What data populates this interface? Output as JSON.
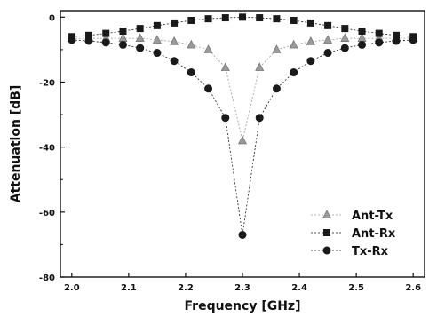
{
  "chart_data": {
    "type": "line",
    "title": "",
    "xlabel": "Frequency [GHz]",
    "ylabel": "Attenuation [dB]",
    "xlim": [
      1.98,
      2.62
    ],
    "ylim": [
      -80,
      2
    ],
    "x_ticks": [
      "2.0",
      "2.1",
      "2.2",
      "2.3",
      "2.4",
      "2.5",
      "2.6"
    ],
    "y_ticks": [
      "0",
      "-20",
      "-40",
      "-60",
      "-80"
    ],
    "grid": false,
    "legend_position": "bottom-right",
    "x": [
      2.0,
      2.03,
      2.06,
      2.09,
      2.12,
      2.15,
      2.18,
      2.21,
      2.24,
      2.27,
      2.3,
      2.33,
      2.36,
      2.39,
      2.42,
      2.45,
      2.48,
      2.51,
      2.54,
      2.57,
      2.6
    ],
    "series": [
      {
        "name": "Ant-Tx",
        "marker": "triangle",
        "color": "#9a9a9a",
        "values": [
          -6.5,
          -6.5,
          -6.5,
          -6.5,
          -6.5,
          -7,
          -7.5,
          -8.5,
          -10,
          -15.5,
          -38,
          -15.5,
          -10,
          -8.5,
          -7.5,
          -7,
          -6.5,
          -6.5,
          -6.5,
          -6.5,
          -6.5
        ]
      },
      {
        "name": "Ant-Rx",
        "marker": "square",
        "color": "#1a1a1a",
        "values": [
          -6,
          -5.6,
          -5,
          -4.3,
          -3.5,
          -2.6,
          -1.8,
          -1,
          -0.5,
          -0.2,
          0,
          -0.2,
          -0.5,
          -1,
          -1.8,
          -2.6,
          -3.5,
          -4.3,
          -5,
          -5.6,
          -6
        ]
      },
      {
        "name": "Tx-Rx",
        "marker": "circle",
        "color": "#1a1a1a",
        "values": [
          -7,
          -7.3,
          -7.8,
          -8.5,
          -9.5,
          -11,
          -13.5,
          -17,
          -22,
          -31,
          -67,
          -31,
          -22,
          -17,
          -13.5,
          -11,
          -9.5,
          -8.5,
          -7.8,
          -7.3,
          -7
        ]
      }
    ]
  }
}
